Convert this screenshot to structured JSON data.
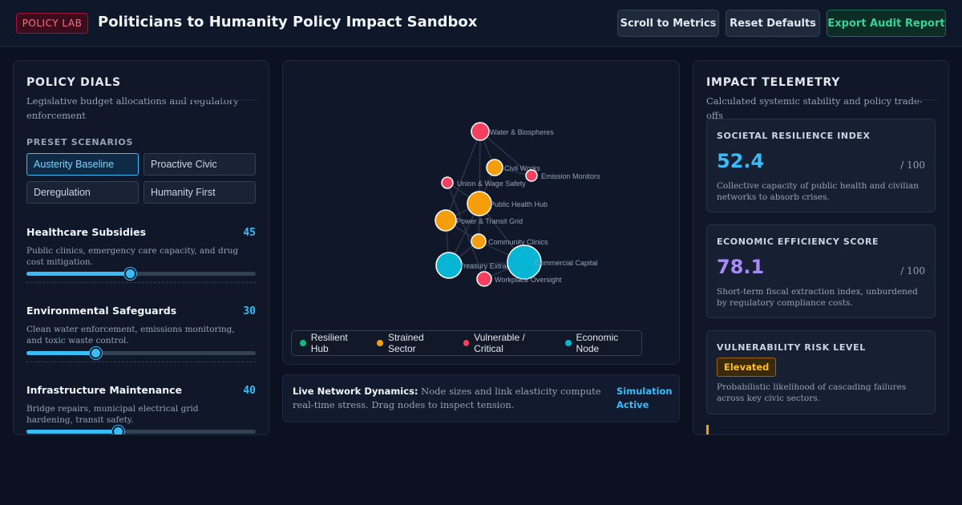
{
  "header": {
    "badge": "POLICY LAB",
    "title": "Politicians to Humanity Policy Impact Sandbox",
    "buttons": {
      "scroll": "Scroll to Metrics",
      "reset": "Reset Defaults",
      "export": "Export Audit Report"
    }
  },
  "dials_panel": {
    "title": "POLICY DIALS",
    "subtitle": "Legislative budget allocations and regulatory enforcement",
    "presets_label": "PRESET SCENARIOS",
    "presets": [
      "Austerity Baseline",
      "Proactive Civic",
      "Deregulation",
      "Humanity First"
    ],
    "active_preset": "Austerity Baseline",
    "dials": [
      {
        "name": "Healthcare Subsidies",
        "value": 45,
        "desc": "Public clinics, emergency care capacity, and drug cost mitigation."
      },
      {
        "name": "Environmental Safeguards",
        "value": 30,
        "desc": "Clean water enforcement, emissions monitoring, and toxic waste control."
      },
      {
        "name": "Infrastructure Maintenance",
        "value": 40,
        "desc": "Bridge repairs, municipal electrical grid hardening, transit safety."
      }
    ]
  },
  "network": {
    "legend": [
      "Resilient Hub",
      "Strained Sector",
      "Vulnerable / Critical",
      "Economic Node"
    ],
    "colors": {
      "resilient": "#10b981",
      "strained": "#f59e0b",
      "critical": "#f43f5e",
      "economic": "#06b6d4"
    },
    "nodes": [
      {
        "label": "Water & Biospheres",
        "status": "critical"
      },
      {
        "label": "Civil Works",
        "status": "strained"
      },
      {
        "label": "Emission Monitors",
        "status": "critical"
      },
      {
        "label": "Union & Wage Safety",
        "status": "critical"
      },
      {
        "label": "Public Health Hub",
        "status": "strained"
      },
      {
        "label": "Power & Transit Grid",
        "status": "strained"
      },
      {
        "label": "Community Clinics",
        "status": "strained"
      },
      {
        "label": "Treasury Extraction",
        "status": "economic"
      },
      {
        "label": "Commercial Capital",
        "status": "economic"
      },
      {
        "label": "Workplace Oversight",
        "status": "critical"
      }
    ],
    "status_title": "Live Network Dynamics:",
    "status_text": "Node sizes and link elasticity compute real-time stress. Drag nodes to inspect tension.",
    "status_badge": "Simulation Active"
  },
  "telemetry": {
    "title": "IMPACT TELEMETRY",
    "subtitle": "Calculated systemic stability and policy trade-offs",
    "cards": [
      {
        "title": "SOCIETAL RESILIENCE INDEX",
        "value": "52.4",
        "max": "/ 100",
        "desc": "Collective capacity of public health and civilian networks to absorb crises.",
        "color": "#38bdf8"
      },
      {
        "title": "ECONOMIC EFFICIENCY SCORE",
        "value": "78.1",
        "max": "/ 100",
        "desc": "Short-term fiscal extraction index, unburdened by regulatory compliance costs.",
        "color": "#a78bfa"
      }
    ],
    "risk": {
      "title": "VULNERABILITY RISK LEVEL",
      "level": "Elevated",
      "desc": "Probabilistic likelihood of cascading failures across key civic sectors."
    }
  }
}
